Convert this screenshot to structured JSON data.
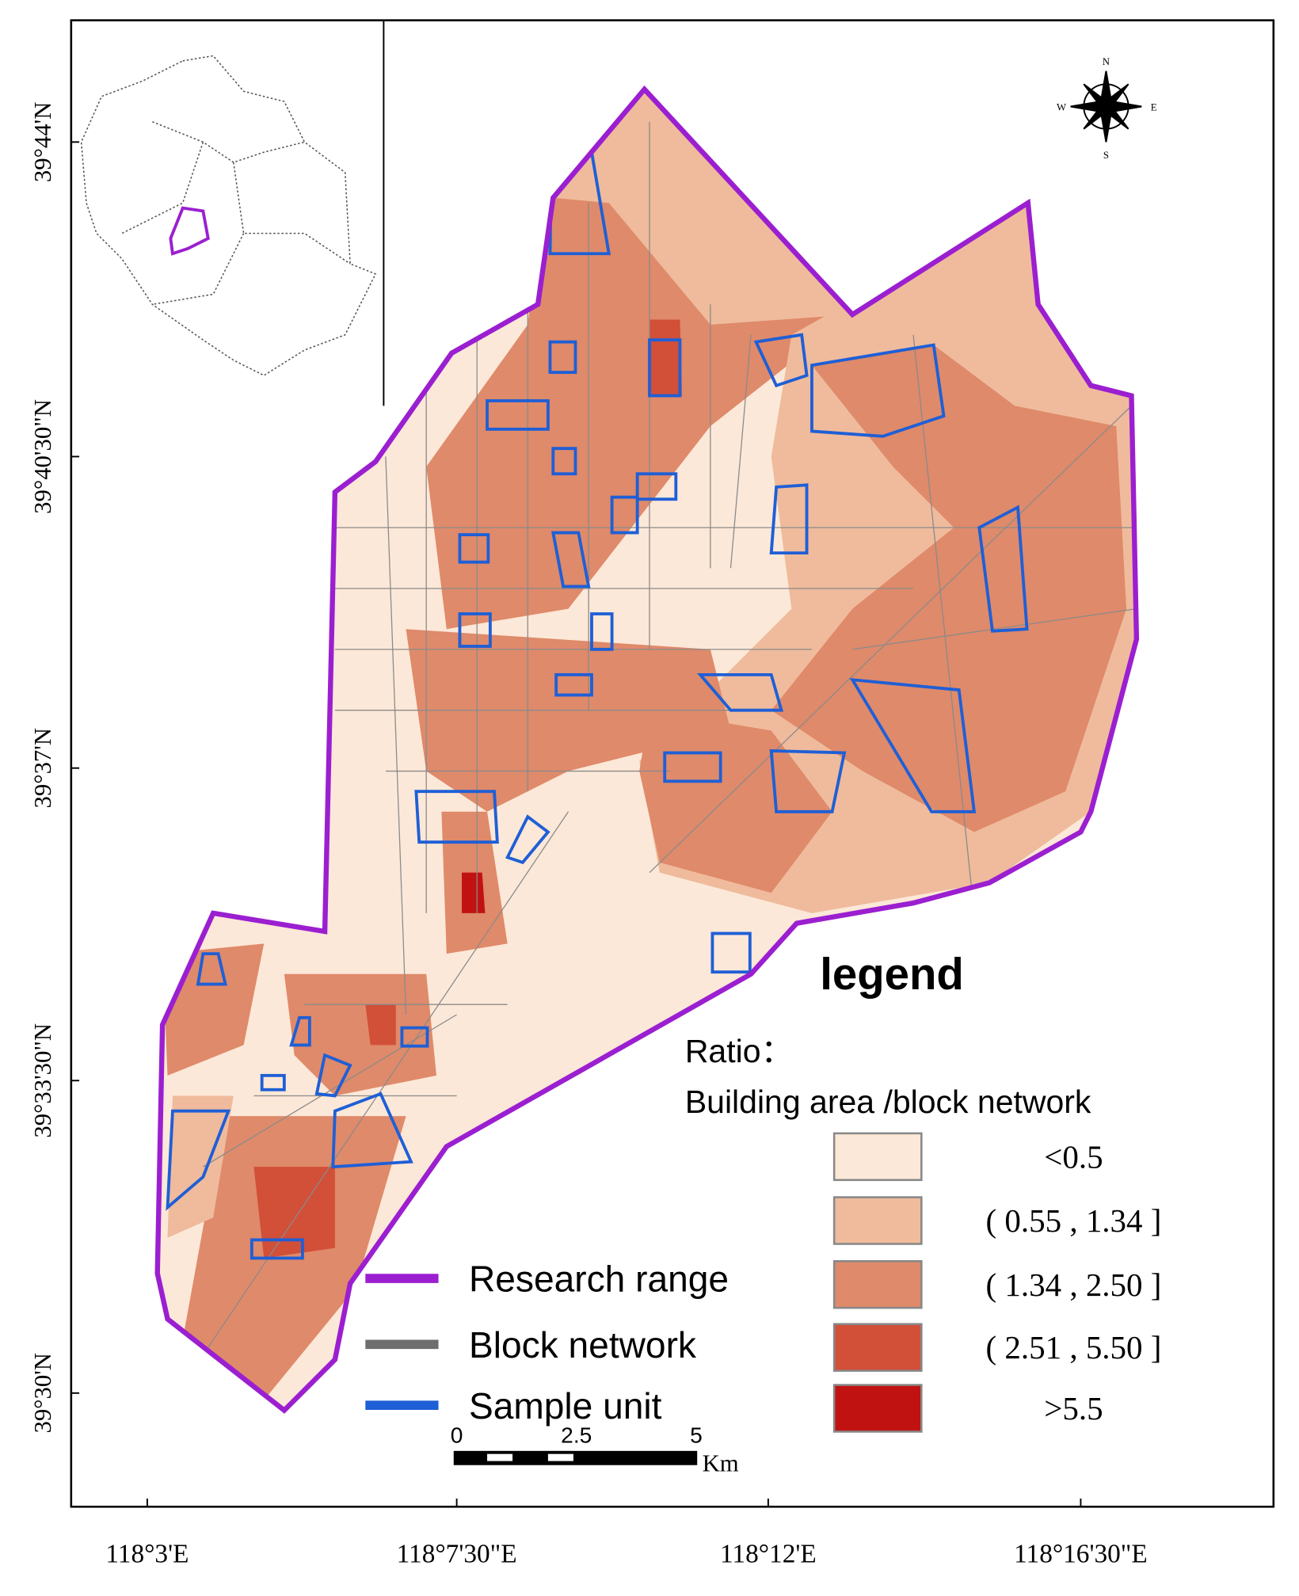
{
  "map": {
    "y_axis_labels": [
      "39°44'N",
      "39°40'30\"N",
      "39°37'N",
      "39°33'30\"N",
      "39°30'N"
    ],
    "x_axis_labels": [
      "118°3'E",
      "118°7'30\"E",
      "118°12'E",
      "118°16'30\"E"
    ],
    "compass": {
      "north": "N",
      "south": "S",
      "west": "W",
      "east": "E"
    },
    "legend": {
      "title": "legend",
      "subtitle_1": "Ratio：",
      "subtitle_2": "Building area /block network",
      "classes": [
        {
          "label": "<0.5",
          "color": "#fce8d8"
        },
        {
          "label": "( 0.55 , 1.34 ]",
          "color": "#efbb9c"
        },
        {
          "label": "( 1.34 , 2.50 ]",
          "color": "#df8a6a"
        },
        {
          "label": "( 2.51 , 5.50 ]",
          "color": "#d24f38"
        },
        {
          "label": ">5.5",
          "color": "#c11212"
        }
      ],
      "lines": [
        {
          "label": "Research range",
          "color": "#9b1fd0"
        },
        {
          "label": "Block network",
          "color": "#6e6e6e"
        },
        {
          "label": "Sample unit",
          "color": "#1f5fd6"
        }
      ]
    },
    "scale_bar": {
      "labels": [
        "0",
        "2.5",
        "5"
      ],
      "unit": "Km"
    }
  }
}
